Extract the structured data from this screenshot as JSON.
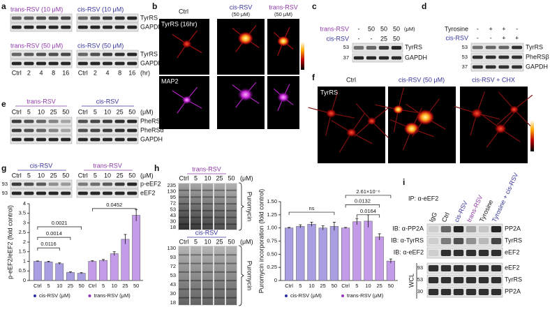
{
  "figure": {
    "a": {
      "label": "a",
      "headers": [
        "trans-RSV (10 μM)",
        "cis-RSV (10 μM)",
        "trans-RSV (50 μM)",
        "cis-RSV (50 μM)"
      ],
      "bands": [
        "TyrRS",
        "GAPDH"
      ],
      "lanes": [
        "Ctrl",
        "2",
        "4",
        "8",
        "16"
      ],
      "unit": "(hr)"
    },
    "b": {
      "label": "b",
      "columns": [
        "Ctrl",
        "cis-RSV",
        "trans-RSV"
      ],
      "concentrations": [
        "(50 μM)",
        "(50 μM)"
      ],
      "stains": [
        "TyrRS (16hr)",
        "MAP2"
      ]
    },
    "c": {
      "label": "c",
      "rows": [
        {
          "name": "trans-RSV",
          "lanes": [
            "-",
            "50",
            "50",
            "50"
          ]
        },
        {
          "name": "cis-RSV",
          "lanes": [
            "-",
            "-",
            "25",
            "50"
          ]
        }
      ],
      "unit": "(μM)",
      "markers": [
        "53",
        "37"
      ],
      "bands": [
        "TyrRS",
        "GAPDH"
      ]
    },
    "d": {
      "label": "d",
      "rows": [
        {
          "name": "Tyrosine",
          "lanes": [
            "-",
            "+",
            "+",
            "-"
          ]
        },
        {
          "name": "cis-RSV",
          "lanes": [
            "-",
            "-",
            "+",
            "+"
          ]
        }
      ],
      "markers": [
        "53",
        "53",
        "37"
      ],
      "bands": [
        "TyrRS",
        "PheRSβ",
        "GAPDH"
      ]
    },
    "e": {
      "label": "e",
      "headers": [
        "trans-RSV",
        "cis-RSV"
      ],
      "lanes": [
        "Ctrl",
        "5",
        "10",
        "25",
        "50"
      ],
      "unit": "(μM)",
      "bands": [
        "PheRSβ",
        "PheRSα",
        "GAPDH"
      ]
    },
    "f": {
      "label": "f",
      "titles": [
        "Ctrl",
        "cis-RSV (50 μM)",
        "cis-RSV + CHX"
      ],
      "stain": "TyrRS"
    },
    "g": {
      "label": "g",
      "headers": [
        "cis-RSV",
        "trans-RSV"
      ],
      "lanes": [
        "Ctrl",
        "5",
        "10",
        "25",
        "50"
      ],
      "unit": "(μM)",
      "markers": [
        "93",
        "93"
      ],
      "bands": [
        "p-eEF2",
        "eEF2"
      ]
    },
    "h": {
      "label": "h",
      "lanes": [
        "Ctrl",
        "5",
        "10",
        "25",
        "50"
      ],
      "unit": "(μM)",
      "blots": [
        {
          "header": "trans-RSV",
          "band": "Puromycin",
          "markers": [
            "235",
            "130",
            "95",
            "72",
            "53",
            "43",
            "30",
            "18"
          ]
        },
        {
          "header": "cis-RSV",
          "band": "Puromycin",
          "markers": [
            "130",
            "93",
            "72",
            "53",
            "43",
            "30",
            "18"
          ]
        }
      ]
    },
    "i": {
      "label": "i",
      "ip": "IP: α-eEF2",
      "lanes": [
        "IgG",
        "Ctrl",
        "cis-RSV",
        "trans-RSV",
        "Tyrosine",
        "Tyrosine + cis-RSV"
      ],
      "ib": [
        "IB: α-PP2A",
        "IB: α-TyrRS",
        "IB: α-eEF2"
      ],
      "ip_bands": [
        "PP2A",
        "TyrRS",
        "eEF2"
      ],
      "wcl": "WCL",
      "wcl_bands": [
        "eEF2",
        "TyrRS",
        "PP2A"
      ],
      "markers": [
        "93",
        "53",
        "30"
      ]
    }
  },
  "chart_data": [
    {
      "type": "bar",
      "y_label": "p-eEF2/eEF2 (fold control)",
      "categories": [
        "Ctrl",
        "5",
        "10",
        "25",
        "50"
      ],
      "series": [
        {
          "name": "cis-RSV (μM)",
          "color": "#aa9ee2",
          "marker_color": "#2e2e9c",
          "values": [
            1,
            0.97,
            0.88,
            0.42,
            0.38
          ],
          "errors": [
            0.02,
            0.03,
            0.04,
            0.03,
            0.03
          ]
        },
        {
          "name": "trans-RSV (μM)",
          "color": "#c49be8",
          "marker_color": "#9234b8",
          "values": [
            1,
            1.05,
            1.4,
            2.15,
            3.4
          ],
          "errors": [
            0.03,
            0.05,
            0.1,
            0.25,
            0.3
          ]
        }
      ],
      "ylim": [
        0,
        4
      ],
      "yticks": [
        0,
        0.5,
        1,
        1.5,
        2,
        2.5,
        3,
        3.5,
        4
      ],
      "annotations": [
        "0.0116",
        "0.0014",
        "0.0021",
        "0.0452"
      ]
    },
    {
      "type": "bar",
      "y_label": "Puromycin incorporation (fold control)",
      "categories": [
        "Ctrl",
        "5",
        "10",
        "25",
        "50"
      ],
      "series": [
        {
          "name": "cis-RSV (μM)",
          "color": "#aa9ee2",
          "marker_color": "#2e2e9c",
          "values": [
            1,
            1.03,
            1.07,
            1.0,
            1.03
          ],
          "errors": [
            0.01,
            0.03,
            0.04,
            0.04,
            0.08
          ]
        },
        {
          "name": "trans-RSV (μM)",
          "color": "#c49be8",
          "marker_color": "#9234b8",
          "values": [
            1,
            1.12,
            1.13,
            0.83,
            0.37
          ],
          "errors": [
            0.01,
            0.06,
            0.12,
            0.06,
            0.04
          ]
        }
      ],
      "ylim": [
        0,
        1.5
      ],
      "yticks": [
        0,
        0.25,
        {
          "value": 0.5,
          "label": "0.50"
        },
        0.75,
        {
          "value": 1,
          "label": "1.00"
        },
        1.25,
        {
          "value": 1.5,
          "label": "1.50"
        }
      ],
      "annotations": [
        "ns",
        "2.61×10⁻⁶",
        "0.0132",
        "0.0164"
      ]
    }
  ]
}
